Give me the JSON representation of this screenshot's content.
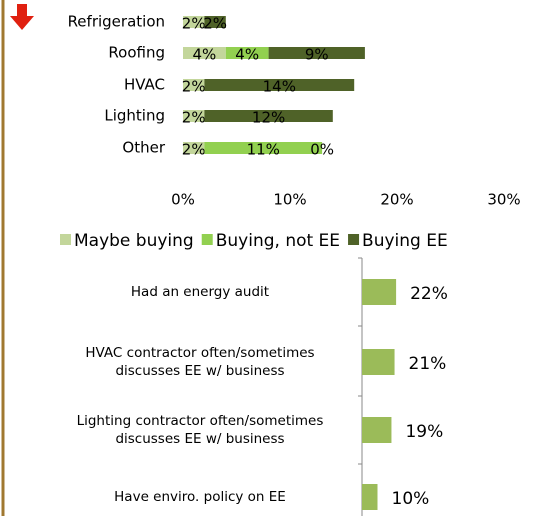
{
  "chart_data": [
    {
      "type": "stacked-bar-horizontal",
      "categories": [
        "Refrigeration",
        "Roofing",
        "HVAC",
        "Lighting",
        "Other"
      ],
      "series": [
        {
          "name": "Maybe buying",
          "color": "#c3d69b",
          "values": [
            2,
            4,
            2,
            2,
            2
          ],
          "value_labels": [
            "2%",
            "4%",
            "2%",
            "2%",
            "2%"
          ]
        },
        {
          "name": "Buying, not EE",
          "color": "#92d050",
          "values": [
            null,
            4,
            null,
            null,
            11
          ],
          "value_labels": [
            null,
            "4%",
            null,
            null,
            "11%"
          ]
        },
        {
          "name": "Buying EE",
          "color": "#4f6228",
          "values": [
            2,
            9,
            14,
            12,
            0
          ],
          "value_labels": [
            "2%",
            "9%",
            "14%",
            "12%",
            "0%"
          ]
        }
      ],
      "xlim": [
        0,
        30
      ],
      "xticks": [
        {
          "value": 0,
          "label": "0%"
        },
        {
          "value": 10,
          "label": "10%"
        },
        {
          "value": 20,
          "label": "20%"
        },
        {
          "value": 30,
          "label": "30%"
        }
      ],
      "legend": "bottom"
    },
    {
      "type": "bar-horizontal",
      "categories": [
        "Had an energy audit",
        "HVAC contractor often/sometimes discusses EE w/ business",
        "Lighting contractor often/sometimes discusses EE w/ business",
        "Have enviro. policy on EE"
      ],
      "values": [
        22,
        21,
        19,
        10
      ],
      "value_labels": [
        "22%",
        "21%",
        "19%",
        "10%"
      ],
      "color": "#9bbb59",
      "xlim": [
        0,
        100
      ]
    }
  ]
}
